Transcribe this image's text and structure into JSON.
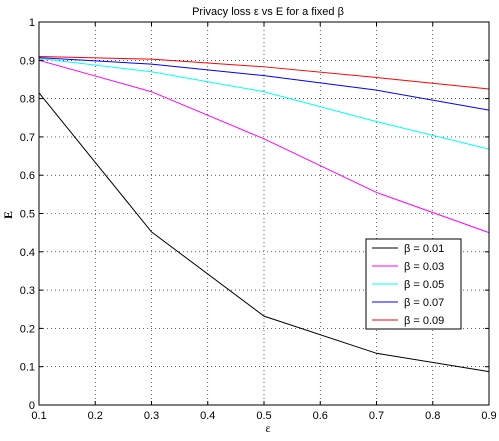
{
  "chart_data": {
    "type": "line",
    "title": "Privacy loss ε vs E for a fixed β",
    "xlabel": "ε",
    "ylabel": "E",
    "xlim": [
      0.1,
      0.9
    ],
    "ylim": [
      0,
      1
    ],
    "xticks": [
      0.1,
      0.2,
      0.3,
      0.4,
      0.5,
      0.6,
      0.7,
      0.8,
      0.9
    ],
    "yticks": [
      0,
      0.1,
      0.2,
      0.3,
      0.4,
      0.5,
      0.6,
      0.7,
      0.8,
      0.9,
      1
    ],
    "grid": true,
    "grid_style": "dotted",
    "legend_position": "right, lower-middle",
    "x": [
      0.1,
      0.3,
      0.5,
      0.7,
      0.9
    ],
    "series": [
      {
        "name": "β = 0.01",
        "color": "#000000",
        "values": [
          0.815,
          0.452,
          0.232,
          0.135,
          0.087
        ]
      },
      {
        "name": "β = 0.03",
        "color": "#ff00ff",
        "values": [
          0.9,
          0.818,
          0.695,
          0.555,
          0.45
        ]
      },
      {
        "name": "β = 0.05",
        "color": "#00ffff",
        "values": [
          0.905,
          0.87,
          0.818,
          0.74,
          0.668
        ]
      },
      {
        "name": "β = 0.07",
        "color": "#0000ff",
        "values": [
          0.907,
          0.89,
          0.86,
          0.822,
          0.77
        ]
      },
      {
        "name": "β = 0.09",
        "color": "#ff0000",
        "values": [
          0.91,
          0.903,
          0.883,
          0.855,
          0.825
        ]
      }
    ]
  }
}
